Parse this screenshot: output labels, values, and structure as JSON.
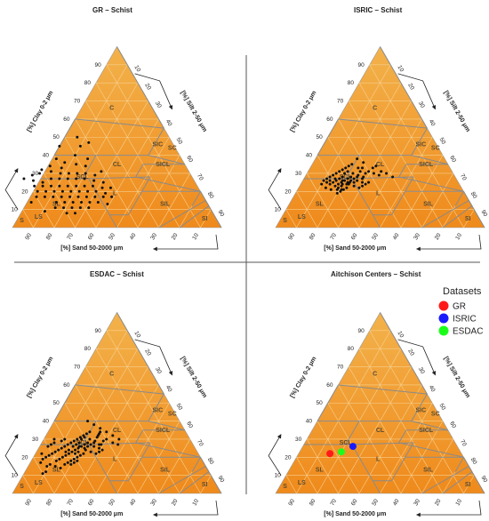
{
  "chart_data": [
    {
      "type": "scatter",
      "subtype": "soil-texture-triangle",
      "title": "GR – Schist",
      "axes": {
        "left": {
          "label": "[%] Clay 0-2 μm",
          "ticks": [
            "10",
            "20",
            "30",
            "40",
            "50",
            "60",
            "70",
            "80",
            "90"
          ]
        },
        "right": {
          "label": "[%] Silt 2-50 μm",
          "ticks": [
            "10",
            "20",
            "30",
            "40",
            "50",
            "60",
            "70",
            "80",
            "90"
          ]
        },
        "bottom": {
          "label": "[%] Sand 50-2000 μm",
          "ticks": [
            "90",
            "80",
            "70",
            "60",
            "50",
            "40",
            "30",
            "20",
            "10"
          ]
        }
      },
      "classes": [
        "C",
        "SIC",
        "SC",
        "CL",
        "SICL",
        "SCL",
        "L",
        "SIL",
        "SL",
        "LS",
        "S",
        "SI"
      ],
      "grid": true,
      "points_sand_clay": [
        [
          45,
          45
        ],
        [
          40,
          47
        ],
        [
          44,
          50
        ],
        [
          55,
          45
        ],
        [
          52,
          35
        ],
        [
          57,
          36
        ],
        [
          60,
          38
        ],
        [
          48,
          34
        ],
        [
          45,
          38
        ],
        [
          50,
          40
        ],
        [
          42,
          31
        ],
        [
          46,
          29
        ],
        [
          50,
          30
        ],
        [
          54,
          30
        ],
        [
          58,
          30
        ],
        [
          62,
          30
        ],
        [
          66,
          31
        ],
        [
          70,
          32
        ],
        [
          72,
          30
        ],
        [
          76,
          29
        ],
        [
          56,
          27
        ],
        [
          60,
          27
        ],
        [
          64,
          27
        ],
        [
          68,
          27
        ],
        [
          52,
          27
        ],
        [
          48,
          26
        ],
        [
          44,
          25
        ],
        [
          42,
          22
        ],
        [
          46,
          22
        ],
        [
          50,
          23
        ],
        [
          54,
          23
        ],
        [
          58,
          23
        ],
        [
          62,
          23
        ],
        [
          66,
          23
        ],
        [
          70,
          23
        ],
        [
          74,
          23
        ],
        [
          78,
          23
        ],
        [
          58,
          20
        ],
        [
          62,
          20
        ],
        [
          66,
          20
        ],
        [
          70,
          20
        ],
        [
          74,
          20
        ],
        [
          78,
          20
        ],
        [
          54,
          20
        ],
        [
          50,
          20
        ],
        [
          46,
          19
        ],
        [
          44,
          17
        ],
        [
          48,
          17
        ],
        [
          52,
          17
        ],
        [
          56,
          17
        ],
        [
          60,
          17
        ],
        [
          64,
          17
        ],
        [
          68,
          17
        ],
        [
          72,
          17
        ],
        [
          76,
          17
        ],
        [
          80,
          17
        ],
        [
          56,
          14
        ],
        [
          60,
          14
        ],
        [
          64,
          14
        ],
        [
          68,
          14
        ],
        [
          72,
          14
        ],
        [
          52,
          14
        ],
        [
          48,
          13
        ],
        [
          62,
          11
        ],
        [
          66,
          11
        ],
        [
          70,
          11
        ],
        [
          74,
          11
        ],
        [
          58,
          11
        ],
        [
          66,
          8
        ],
        [
          70,
          8
        ],
        [
          73,
          25
        ],
        [
          77,
          26
        ],
        [
          81,
          27
        ],
        [
          84,
          14
        ],
        [
          80,
          9
        ],
        [
          60,
          33
        ],
        [
          65,
          34
        ]
      ]
    },
    {
      "type": "scatter",
      "subtype": "soil-texture-triangle",
      "title": "ISRIC – Schist",
      "axes": {
        "left": {
          "label": "[%] Clay 0-2 μm",
          "ticks": [
            "10",
            "20",
            "30",
            "40",
            "50",
            "60",
            "70",
            "80",
            "90"
          ]
        },
        "right": {
          "label": "[%] Silt 2-50 μm",
          "ticks": [
            "10",
            "20",
            "30",
            "40",
            "50",
            "60",
            "70",
            "80",
            "90"
          ]
        },
        "bottom": {
          "label": "[%] Sand 50-2000 μm",
          "ticks": [
            "90",
            "80",
            "70",
            "60",
            "50",
            "40",
            "30",
            "20",
            "10"
          ]
        }
      },
      "classes": [
        "C",
        "SIC",
        "SC",
        "CL",
        "SICL",
        "SCL",
        "L",
        "SIL",
        "SL",
        "LS",
        "S",
        "SI"
      ],
      "grid": true,
      "points_sand_clay": [
        [
          42,
          38
        ],
        [
          40,
          36
        ],
        [
          37,
          33
        ],
        [
          35,
          34
        ],
        [
          44,
          33
        ],
        [
          46,
          35
        ],
        [
          48,
          34
        ],
        [
          50,
          33
        ],
        [
          52,
          32
        ],
        [
          54,
          31
        ],
        [
          56,
          30
        ],
        [
          58,
          29
        ],
        [
          60,
          28
        ],
        [
          62,
          27
        ],
        [
          64,
          26
        ],
        [
          50,
          28
        ],
        [
          52,
          27
        ],
        [
          54,
          26
        ],
        [
          56,
          25
        ],
        [
          58,
          24
        ],
        [
          60,
          23
        ],
        [
          48,
          26
        ],
        [
          46,
          25
        ],
        [
          44,
          28
        ],
        [
          42,
          30
        ],
        [
          40,
          31
        ],
        [
          38,
          30
        ],
        [
          36,
          29
        ],
        [
          55,
          22
        ],
        [
          57,
          21
        ],
        [
          59,
          20
        ],
        [
          61,
          19
        ],
        [
          63,
          21
        ],
        [
          65,
          22
        ],
        [
          62,
          24
        ],
        [
          53,
          24
        ],
        [
          51,
          23
        ],
        [
          49,
          22
        ],
        [
          47,
          23
        ],
        [
          45,
          24
        ],
        [
          43,
          25
        ],
        [
          54,
          28
        ],
        [
          56,
          27
        ],
        [
          58,
          26
        ],
        [
          60,
          25
        ],
        [
          52,
          30
        ],
        [
          50,
          31
        ],
        [
          48,
          30
        ],
        [
          46,
          29
        ],
        [
          44,
          31
        ],
        [
          42,
          33
        ],
        [
          57,
          23
        ],
        [
          59,
          22
        ],
        [
          61,
          26
        ],
        [
          63,
          25
        ],
        [
          55,
          26
        ],
        [
          53,
          25
        ],
        [
          51,
          26
        ],
        [
          49,
          27
        ],
        [
          47,
          28
        ],
        [
          45,
          27
        ],
        [
          34,
          31
        ],
        [
          32,
          30
        ],
        [
          30,
          28
        ],
        [
          66,
          24
        ],
        [
          58,
          27
        ],
        [
          56,
          24
        ],
        [
          54,
          24
        ],
        [
          52,
          25
        ],
        [
          50,
          25
        ],
        [
          58,
          21
        ],
        [
          60,
          21
        ]
      ]
    },
    {
      "type": "scatter",
      "subtype": "soil-texture-triangle",
      "title": "ESDAC – Schist",
      "axes": {
        "left": {
          "label": "[%] Clay 0-2 μm",
          "ticks": [
            "10",
            "20",
            "30",
            "40",
            "50",
            "60",
            "70",
            "80",
            "90"
          ]
        },
        "right": {
          "label": "[%] Silt 2-50 μm",
          "ticks": [
            "10",
            "20",
            "30",
            "40",
            "50",
            "60",
            "70",
            "80",
            "90"
          ]
        },
        "bottom": {
          "label": "[%] Sand 50-2000 μm",
          "ticks": [
            "90",
            "80",
            "70",
            "60",
            "50",
            "40",
            "30",
            "20",
            "10"
          ]
        }
      },
      "classes": [
        "C",
        "SIC",
        "SC",
        "CL",
        "SICL",
        "SCL",
        "L",
        "SIL",
        "SL",
        "LS",
        "S",
        "SI"
      ],
      "grid": true,
      "points_sand_clay": [
        [
          44,
          40
        ],
        [
          42,
          38
        ],
        [
          40,
          36
        ],
        [
          38,
          34
        ],
        [
          46,
          34
        ],
        [
          48,
          33
        ],
        [
          50,
          32
        ],
        [
          52,
          31
        ],
        [
          54,
          30
        ],
        [
          56,
          29
        ],
        [
          58,
          28
        ],
        [
          60,
          27
        ],
        [
          62,
          26
        ],
        [
          64,
          25
        ],
        [
          66,
          24
        ],
        [
          68,
          23
        ],
        [
          70,
          22
        ],
        [
          72,
          21
        ],
        [
          74,
          20
        ],
        [
          76,
          19
        ],
        [
          50,
          28
        ],
        [
          52,
          27
        ],
        [
          54,
          26
        ],
        [
          56,
          25
        ],
        [
          58,
          24
        ],
        [
          60,
          23
        ],
        [
          62,
          22
        ],
        [
          64,
          21
        ],
        [
          66,
          20
        ],
        [
          68,
          19
        ],
        [
          70,
          18
        ],
        [
          48,
          26
        ],
        [
          46,
          25
        ],
        [
          44,
          27
        ],
        [
          42,
          29
        ],
        [
          40,
          30
        ],
        [
          38,
          28
        ],
        [
          36,
          27
        ],
        [
          55,
          22
        ],
        [
          57,
          21
        ],
        [
          59,
          20
        ],
        [
          61,
          19
        ],
        [
          63,
          18
        ],
        [
          65,
          17
        ],
        [
          67,
          16
        ],
        [
          53,
          24
        ],
        [
          51,
          23
        ],
        [
          49,
          22
        ],
        [
          47,
          23
        ],
        [
          45,
          24
        ],
        [
          54,
          28
        ],
        [
          56,
          27
        ],
        [
          58,
          26
        ],
        [
          52,
          30
        ],
        [
          50,
          31
        ],
        [
          48,
          30
        ],
        [
          46,
          29
        ],
        [
          44,
          31
        ],
        [
          42,
          33
        ],
        [
          57,
          23
        ],
        [
          59,
          22
        ],
        [
          61,
          24
        ],
        [
          63,
          23
        ],
        [
          55,
          26
        ],
        [
          53,
          25
        ],
        [
          51,
          26
        ],
        [
          49,
          27
        ],
        [
          47,
          28
        ],
        [
          45,
          27
        ],
        [
          34,
          30
        ],
        [
          72,
          15
        ],
        [
          74,
          16
        ],
        [
          76,
          15
        ],
        [
          70,
          14
        ],
        [
          78,
          17
        ],
        [
          60,
          18
        ],
        [
          62,
          17
        ],
        [
          64,
          16
        ],
        [
          43,
          32
        ],
        [
          41,
          34
        ],
        [
          66,
          28
        ],
        [
          68,
          27
        ],
        [
          70,
          26
        ],
        [
          65,
          30
        ],
        [
          78,
          12
        ],
        [
          80,
          11
        ],
        [
          60,
          30
        ],
        [
          62,
          29
        ],
        [
          36,
          32
        ],
        [
          75,
          22
        ]
      ]
    },
    {
      "type": "scatter",
      "subtype": "soil-texture-triangle",
      "title": "Aitchison Centers – Schist",
      "axes": {
        "left": {
          "label": "[%] Clay 0-2 μm",
          "ticks": [
            "10",
            "20",
            "30",
            "40",
            "50",
            "60",
            "70",
            "80",
            "90"
          ]
        },
        "right": {
          "label": "[%] Silt 2-50 μm",
          "ticks": [
            "10",
            "20",
            "30",
            "40",
            "50",
            "60",
            "70",
            "80",
            "90"
          ]
        },
        "bottom": {
          "label": "[%] Sand 50-2000 μm",
          "ticks": [
            "90",
            "80",
            "70",
            "60",
            "50",
            "40",
            "30",
            "20",
            "10"
          ]
        }
      },
      "classes": [
        "C",
        "SIC",
        "SC",
        "CL",
        "SICL",
        "SCL",
        "L",
        "SIL",
        "SL",
        "LS",
        "S",
        "SI"
      ],
      "grid": true,
      "legend": {
        "title": "Datasets",
        "placement": "top-right",
        "entries": [
          {
            "name": "GR",
            "color": "#ff1a1a"
          },
          {
            "name": "ISRIC",
            "color": "#1a1aff"
          },
          {
            "name": "ESDAC",
            "color": "#1aff1a"
          }
        ]
      },
      "centers": [
        {
          "name": "GR",
          "sand": 63,
          "clay": 22,
          "color": "#ff1a1a"
        },
        {
          "name": "ESDAC",
          "sand": 57,
          "clay": 23,
          "color": "#1aff1a"
        },
        {
          "name": "ISRIC",
          "sand": 50,
          "clay": 26,
          "color": "#1a1aff"
        }
      ]
    }
  ],
  "colors": {
    "fill_top": "#f3b24b",
    "fill_bottom": "#ef8a1c",
    "class_boundary": "#8a8a8a",
    "grid": "#f6d08f",
    "divider": "#555555"
  }
}
